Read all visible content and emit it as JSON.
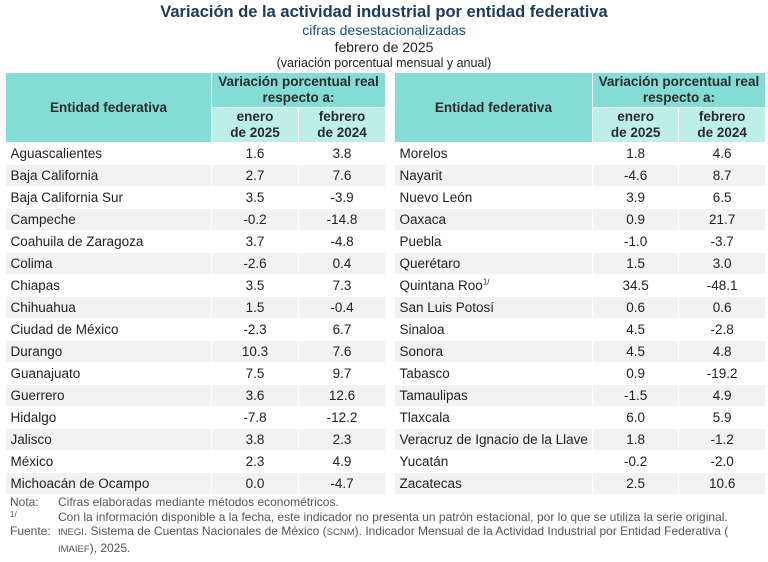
{
  "title": "Variación de la actividad industrial por entidad federativa",
  "subtitle": "cifras desestacionalizadas",
  "period": "febrero de 2025",
  "unit": "(variación porcentual mensual y anual)",
  "headers": {
    "entity": "Entidad federativa",
    "variation": "Variación porcentual real respecto a:",
    "col1_a": "enero",
    "col1_b": "de 2025",
    "col2_a": "febrero",
    "col2_b": "de 2024"
  },
  "left_rows": [
    {
      "name": "Aguascalientes",
      "m": "1.6",
      "a": "3.8"
    },
    {
      "name": "Baja California",
      "m": "2.7",
      "a": "7.6"
    },
    {
      "name": "Baja California Sur",
      "m": "3.5",
      "a": "-3.9"
    },
    {
      "name": "Campeche",
      "m": "-0.2",
      "a": "-14.8"
    },
    {
      "name": "Coahuila de Zaragoza",
      "m": "3.7",
      "a": "-4.8"
    },
    {
      "name": "Colima",
      "m": "-2.6",
      "a": "0.4"
    },
    {
      "name": "Chiapas",
      "m": "3.5",
      "a": "7.3"
    },
    {
      "name": "Chihuahua",
      "m": "1.5",
      "a": "-0.4"
    },
    {
      "name": "Ciudad de México",
      "m": "-2.3",
      "a": "6.7"
    },
    {
      "name": "Durango",
      "m": "10.3",
      "a": "7.6"
    },
    {
      "name": "Guanajuato",
      "m": "7.5",
      "a": "9.7"
    },
    {
      "name": "Guerrero",
      "m": "3.6",
      "a": "12.6"
    },
    {
      "name": "Hidalgo",
      "m": "-7.8",
      "a": "-12.2"
    },
    {
      "name": "Jalisco",
      "m": "3.8",
      "a": "2.3"
    },
    {
      "name": "México",
      "m": "2.3",
      "a": "4.9"
    },
    {
      "name": "Michoacán de Ocampo",
      "m": "0.0",
      "a": "-4.7"
    }
  ],
  "right_rows": [
    {
      "name": "Morelos",
      "m": "1.8",
      "a": "4.6"
    },
    {
      "name": "Nayarit",
      "m": "-4.6",
      "a": "8.7"
    },
    {
      "name": "Nuevo León",
      "m": "3.9",
      "a": "6.5"
    },
    {
      "name": "Oaxaca",
      "m": "0.9",
      "a": "21.7"
    },
    {
      "name": "Puebla",
      "m": "-1.0",
      "a": "-3.7"
    },
    {
      "name": "Querétaro",
      "m": "1.5",
      "a": "3.0"
    },
    {
      "name": "Quintana Roo",
      "sup": "1/",
      "m": "34.5",
      "a": "-48.1"
    },
    {
      "name": "San Luis Potosí",
      "m": "0.6",
      "a": "0.6"
    },
    {
      "name": "Sinaloa",
      "m": "4.5",
      "a": "-2.8"
    },
    {
      "name": "Sonora",
      "m": "4.5",
      "a": "4.8"
    },
    {
      "name": "Tabasco",
      "m": "0.9",
      "a": "-19.2"
    },
    {
      "name": "Tamaulipas",
      "m": "-1.5",
      "a": "4.9"
    },
    {
      "name": "Tlaxcala",
      "m": "6.0",
      "a": "5.9"
    },
    {
      "name": "Veracruz de Ignacio de la Llave",
      "m": "1.8",
      "a": "-1.2"
    },
    {
      "name": "Yucatán",
      "m": "-0.2",
      "a": "-2.0"
    },
    {
      "name": "Zacatecas",
      "m": "2.5",
      "a": "10.6"
    }
  ],
  "notes": {
    "nota_label": "Nota:",
    "nota": "Cifras elaboradas mediante métodos econométricos.",
    "fn_label": "1/",
    "fn": "Con la información disponible a la fecha, este indicador no presenta un patrón estacional, por lo que se utiliza la serie original.",
    "fuente_label": "Fuente:",
    "inegi": "INEGI",
    "fuente_a": ". Sistema de Cuentas Nacionales de México (",
    "scnm": "SCNM",
    "fuente_b": "). Indicador Mensual de la Actividad Industrial por Entidad Federativa (",
    "imaief": "IMAIEF",
    "fuente_c": "), 2025."
  }
}
